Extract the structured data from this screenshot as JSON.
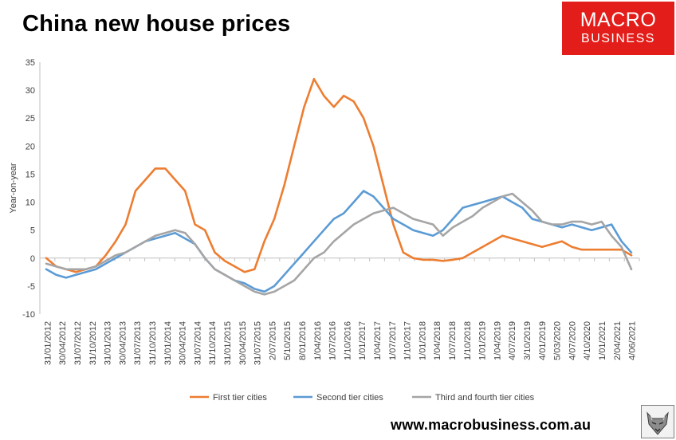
{
  "chart_data": {
    "type": "line",
    "title": "China new house prices",
    "ylabel": "Year-on-year",
    "xlabel": "",
    "ylim": [
      -10,
      35
    ],
    "yticks": [
      -10,
      -5,
      0,
      5,
      10,
      15,
      20,
      25,
      30,
      35
    ],
    "grid": false,
    "legend_position": "bottom",
    "x_tick_labels": [
      "31/01/2012",
      "30/04/2012",
      "31/07/2012",
      "31/10/2012",
      "31/01/2013",
      "30/04/2013",
      "31/07/2013",
      "31/10/2013",
      "31/01/2014",
      "30/04/2014",
      "31/07/2014",
      "31/10/2014",
      "31/01/2015",
      "30/04/2015",
      "31/07/2015",
      "2/07/2015",
      "5/10/2015",
      "8/01/2016",
      "1/04/2016",
      "1/07/2016",
      "1/10/2016",
      "1/01/2017",
      "1/04/2017",
      "1/07/2017",
      "1/10/2017",
      "1/01/2018",
      "1/04/2018",
      "1/07/2018",
      "1/10/2018",
      "1/01/2019",
      "1/04/2019",
      "4/07/2019",
      "3/10/2019",
      "4/01/2019",
      "5/03/2020",
      "4/07/2020",
      "4/10/2020",
      "1/01/2021",
      "2/04/2021",
      "4/06/2021"
    ],
    "series": [
      {
        "name": "First tier cities",
        "color": "#ed7d31",
        "values": [
          0,
          -1.5,
          -2,
          -2.5,
          -2,
          -1.5,
          0.5,
          3,
          6,
          12,
          14,
          16,
          16,
          14,
          12,
          6,
          5,
          1,
          -0.5,
          -1.5,
          -2.5,
          -2,
          3,
          7,
          13,
          20,
          27,
          32,
          29,
          27,
          29,
          28,
          25,
          20,
          13,
          6,
          1,
          0,
          -0.3,
          -0.3,
          -0.5,
          -0.3,
          0,
          1,
          2,
          3,
          4,
          3.5,
          3,
          2.5,
          2,
          2.5,
          3,
          2,
          1.5,
          1.5,
          1.5,
          1.5,
          1.5,
          0.5
        ]
      },
      {
        "name": "Second tier cities",
        "color": "#5b9bd5",
        "values": [
          -2,
          -3,
          -3.5,
          -3,
          -2.5,
          -2,
          -1,
          0,
          1,
          2,
          3,
          3.5,
          4,
          4.5,
          3.5,
          2.5,
          0,
          -2,
          -3,
          -4,
          -4.5,
          -5.5,
          -6,
          -5,
          -3,
          -1,
          1,
          3,
          5,
          7,
          8,
          10,
          12,
          11,
          9,
          7,
          6,
          5,
          4.5,
          4,
          5,
          7,
          9,
          9.5,
          10,
          10.5,
          11,
          10,
          9,
          7,
          6.5,
          6,
          5.5,
          6,
          5.5,
          5,
          5.5,
          6,
          3,
          1
        ]
      },
      {
        "name": "Third and fourth tier cities",
        "color": "#a5a5a5",
        "values": [
          -1,
          -1.5,
          -2,
          -2,
          -2,
          -1.5,
          -0.5,
          0.5,
          1,
          2,
          3,
          4,
          4.5,
          5,
          4.5,
          2.5,
          0,
          -2,
          -3,
          -4,
          -5,
          -6,
          -6.5,
          -6,
          -5,
          -4,
          -2,
          0,
          1,
          3,
          4.5,
          6,
          7,
          8,
          8.5,
          9,
          8,
          7,
          6.5,
          6,
          4,
          5.5,
          6.5,
          7.5,
          9,
          10,
          11,
          11.5,
          10,
          8.5,
          6.5,
          6,
          6,
          6.5,
          6.5,
          6,
          6.5,
          4,
          2,
          -2
        ]
      }
    ]
  },
  "logo": {
    "line1": "MACRO",
    "line2": "BUSINESS"
  },
  "footer": {
    "url": "www.macrobusiness.com.au"
  },
  "icons": {
    "wolf": "wolf-logo-icon"
  }
}
